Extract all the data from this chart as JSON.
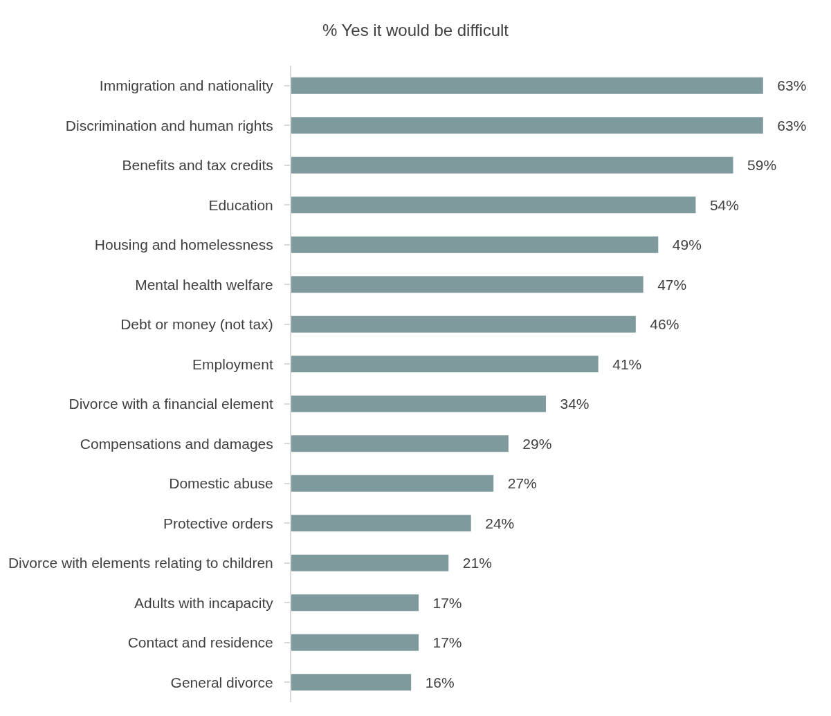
{
  "chart_data": {
    "type": "bar",
    "orientation": "horizontal",
    "title": "% Yes it would be difficult",
    "categories": [
      "Immigration and nationality",
      "Discrimination and human rights",
      "Benefits and tax credits",
      "Education",
      "Housing and homelessness",
      "Mental health welfare",
      "Debt or money (not tax)",
      "Employment",
      "Divorce with a financial element",
      "Compensations and damages",
      "Domestic abuse",
      "Protective orders",
      "Divorce with elements relating to children",
      "Adults with incapacity",
      "Contact and residence",
      "General divorce"
    ],
    "values": [
      63,
      63,
      59,
      54,
      49,
      47,
      46,
      41,
      34,
      29,
      27,
      24,
      21,
      17,
      17,
      16
    ],
    "value_labels": [
      "63%",
      "63%",
      "59%",
      "54%",
      "49%",
      "47%",
      "46%",
      "41%",
      "34%",
      "29%",
      "27%",
      "24%",
      "21%",
      "17%",
      "17%",
      "16%"
    ],
    "color": "#7f9a9d"
  }
}
